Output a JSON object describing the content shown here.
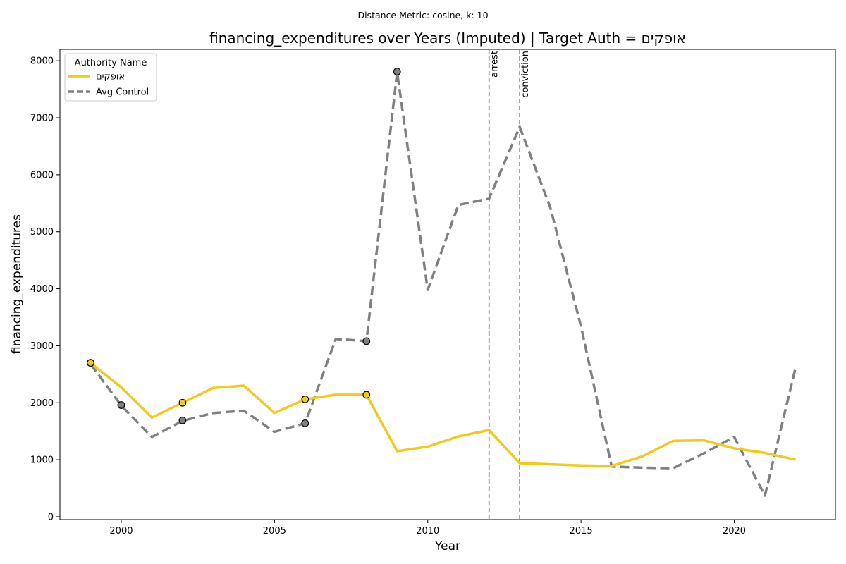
{
  "figure": {
    "suptitle": "Distance Metric: cosine, k: 10"
  },
  "chart_data": {
    "type": "line",
    "title": "financing_expenditures over Years (Imputed) | Target Auth = אופקים",
    "xlabel": "Year",
    "ylabel": "financing_expenditures",
    "xlim": [
      1998,
      2023.3
    ],
    "ylim": [
      -50,
      8200
    ],
    "xticks": [
      2000,
      2005,
      2010,
      2015,
      2020
    ],
    "yticks": [
      0,
      1000,
      2000,
      3000,
      4000,
      5000,
      6000,
      7000,
      8000
    ],
    "legend": {
      "title": "Authority Name",
      "position": "top-left"
    },
    "series": [
      {
        "name": "אופקים",
        "color": "#f2c91c",
        "style": "solid",
        "x": [
          1999,
          2000,
          2001,
          2002,
          2003,
          2004,
          2005,
          2006,
          2007,
          2008,
          2009,
          2010,
          2011,
          2012,
          2013,
          2014,
          2015,
          2016,
          2017,
          2018,
          2019,
          2020,
          2021,
          2022
        ],
        "y": [
          2700,
          2270,
          1740,
          2000,
          2260,
          2300,
          1820,
          2060,
          2140,
          2140,
          1150,
          1230,
          1410,
          1520,
          940,
          920,
          900,
          890,
          1060,
          1330,
          1340,
          1200,
          1120,
          1000
        ],
        "markers_x": [
          1999,
          2002,
          2006,
          2008
        ],
        "markers_y": [
          2700,
          2000,
          2060,
          2140
        ],
        "marker_color": "#f2c91c"
      },
      {
        "name": "Avg Control",
        "color": "#808080",
        "style": "dashed",
        "x": [
          1999,
          2000,
          2001,
          2002,
          2003,
          2004,
          2005,
          2006,
          2007,
          2008,
          2009,
          2010,
          2011,
          2012,
          2013,
          2014,
          2015,
          2016,
          2017,
          2018,
          2019,
          2020,
          2021,
          2022
        ],
        "y": [
          2680,
          1950,
          1400,
          1680,
          1820,
          1860,
          1490,
          1640,
          3120,
          3080,
          7800,
          3980,
          5470,
          5580,
          6840,
          5420,
          3340,
          880,
          860,
          850,
          1110,
          1400,
          370,
          2620
        ],
        "markers_x": [
          1999,
          2000,
          2002,
          2006,
          2008,
          2009
        ],
        "markers_y": [
          2700,
          1960,
          1690,
          1640,
          3080,
          7810
        ],
        "marker_color": "#808080"
      }
    ],
    "annotations": [
      {
        "x": 2012,
        "label": "arrest"
      },
      {
        "x": 2013,
        "label": "conviction"
      }
    ]
  }
}
